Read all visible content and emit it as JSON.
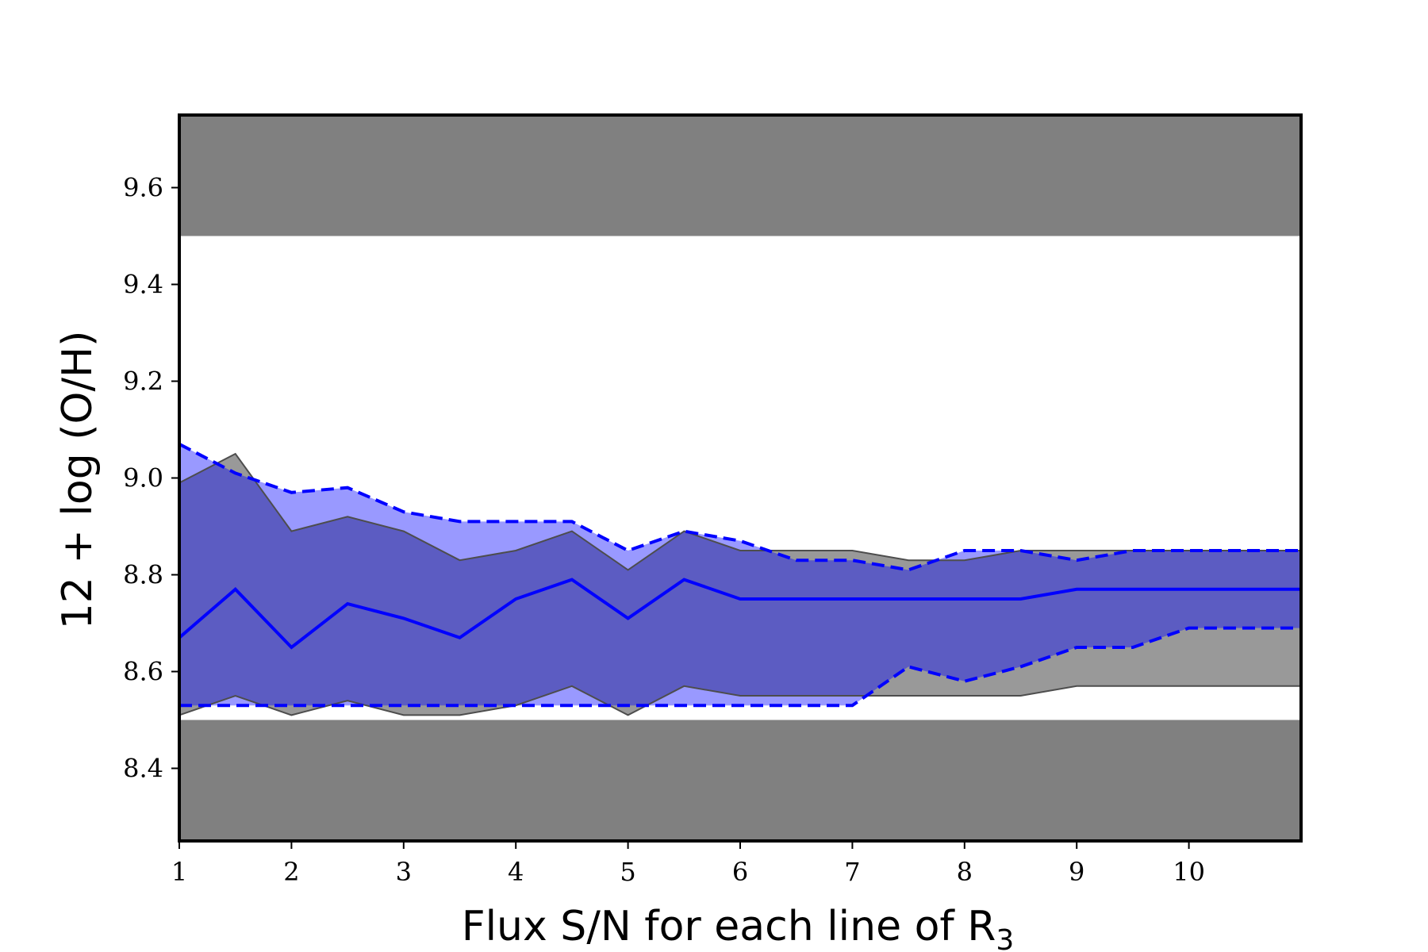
{
  "chart_data": {
    "type": "area",
    "title": "",
    "xlabel": "Flux S/N for each line of R",
    "xlabel_subscript": "3",
    "ylabel": "12 + log (O/H)",
    "xlim": [
      1,
      11
    ],
    "ylim": [
      8.25,
      9.75
    ],
    "x_ticks": [
      1,
      2,
      3,
      4,
      5,
      6,
      7,
      8,
      9,
      10
    ],
    "x_tick_labels": [
      "1",
      "2",
      "3",
      "4",
      "5",
      "6",
      "7",
      "8",
      "9",
      "10"
    ],
    "y_ticks": [
      8.4,
      8.6,
      8.8,
      9.0,
      9.2,
      9.4,
      9.6
    ],
    "y_tick_labels": [
      "8.4",
      "8.6",
      "8.8",
      "9.0",
      "9.2",
      "9.4",
      "9.6"
    ],
    "grid": false,
    "excluded_regions": [
      {
        "ymin": 9.5,
        "ymax": 9.75,
        "color": "#808080"
      },
      {
        "ymin": 8.25,
        "ymax": 8.5,
        "color": "#808080"
      }
    ],
    "x": [
      1,
      1.5,
      2,
      2.5,
      3,
      3.5,
      4,
      4.5,
      5,
      5.5,
      6,
      6.5,
      7,
      7.5,
      8,
      8.5,
      9,
      9.5,
      10,
      11
    ],
    "gray_band": {
      "color": "#808080",
      "upper": [
        8.99,
        9.05,
        8.89,
        8.92,
        8.89,
        8.83,
        8.85,
        8.89,
        8.81,
        8.89,
        8.85,
        8.85,
        8.85,
        8.83,
        8.83,
        8.85,
        8.85,
        8.85,
        8.85,
        8.85
      ],
      "lower": [
        8.51,
        8.55,
        8.51,
        8.54,
        8.51,
        8.51,
        8.53,
        8.57,
        8.51,
        8.57,
        8.55,
        8.55,
        8.55,
        8.55,
        8.55,
        8.55,
        8.57,
        8.57,
        8.57,
        8.57
      ]
    },
    "blue_band": {
      "color": "#0000ff",
      "upper": [
        9.07,
        9.01,
        8.97,
        8.98,
        8.93,
        8.91,
        8.91,
        8.91,
        8.85,
        8.89,
        8.87,
        8.83,
        8.83,
        8.81,
        8.85,
        8.85,
        8.83,
        8.85,
        8.85,
        8.85
      ],
      "median": [
        8.67,
        8.77,
        8.65,
        8.74,
        8.71,
        8.67,
        8.75,
        8.79,
        8.71,
        8.79,
        8.75,
        8.75,
        8.75,
        8.75,
        8.75,
        8.75,
        8.77,
        8.77,
        8.77,
        8.77
      ],
      "lower": [
        8.53,
        8.53,
        8.53,
        8.53,
        8.53,
        8.53,
        8.53,
        8.53,
        8.53,
        8.53,
        8.53,
        8.53,
        8.53,
        8.61,
        8.58,
        8.61,
        8.65,
        8.65,
        8.69,
        8.69
      ]
    }
  }
}
